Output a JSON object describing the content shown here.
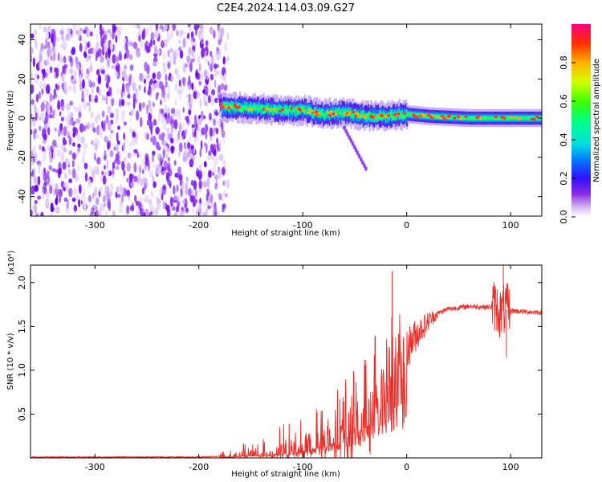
{
  "title": "C2E4.2024.114.03.09.G27",
  "chart_data": [
    {
      "type": "heatmap",
      "xlabel": "Height of straight line (km)",
      "ylabel": "Frequency (Hz)",
      "xlim": [
        -362,
        130
      ],
      "ylim": [
        -50,
        48
      ],
      "x_ticks": [
        -300,
        -200,
        -100,
        0,
        100
      ],
      "y_ticks": [
        -40,
        -20,
        0,
        20,
        40
      ],
      "colorbar": {
        "label": "Normalized spectral amplitude",
        "range": [
          0,
          1
        ],
        "ticks": [
          0.0,
          0.2,
          0.4,
          0.6,
          0.8
        ]
      },
      "noise_region_x": [
        -362,
        -178
      ],
      "signal_track": [
        {
          "x": -178,
          "f": 6
        },
        {
          "x": -150,
          "f": 5
        },
        {
          "x": -120,
          "f": 4
        },
        {
          "x": -100,
          "f": 4
        },
        {
          "x": -80,
          "f": 2
        },
        {
          "x": -60,
          "f": 3
        },
        {
          "x": -40,
          "f": 1
        },
        {
          "x": -20,
          "f": 1
        },
        {
          "x": 0,
          "f": 2
        },
        {
          "x": 20,
          "f": 1
        },
        {
          "x": 60,
          "f": 0
        },
        {
          "x": 85,
          "f": 0
        },
        {
          "x": 130,
          "f": 0
        }
      ]
    },
    {
      "type": "line",
      "xlabel": "Height of straight line (km)",
      "ylabel": "SNR (10 * v/v)",
      "y_multiplier": "(x10⁴)",
      "xlim": [
        -362,
        130
      ],
      "ylim": [
        0,
        2.2
      ],
      "x_ticks": [
        -300,
        -200,
        -100,
        0,
        100
      ],
      "y_ticks": [
        0.5,
        1.0,
        1.5,
        2.0
      ],
      "y_tick_labels": [
        "0.5",
        "1.0",
        "1.5",
        "2.0"
      ],
      "color": "#e8302a",
      "series": [
        {
          "x": [
            -362,
            -300,
            -250,
            -200,
            -170,
            -150,
            -120,
            -100,
            -80,
            -60,
            -40,
            -30,
            -20,
            -10,
            0,
            10,
            20,
            30,
            40,
            60,
            80,
            85,
            90,
            95,
            100,
            110,
            130
          ],
          "y": [
            0.01,
            0.01,
            0.01,
            0.01,
            0.02,
            0.05,
            0.09,
            0.14,
            0.22,
            0.35,
            0.55,
            0.8,
            1.0,
            1.2,
            1.25,
            1.42,
            1.55,
            1.65,
            1.7,
            1.73,
            1.72,
            1.74,
            1.65,
            1.7,
            1.68,
            1.67,
            1.66
          ]
        }
      ],
      "spikes": [
        {
          "x": -14,
          "y": 2.13
        },
        {
          "x": 93,
          "y": 2.2
        },
        {
          "x": 96,
          "y": 1.15
        }
      ]
    }
  ]
}
